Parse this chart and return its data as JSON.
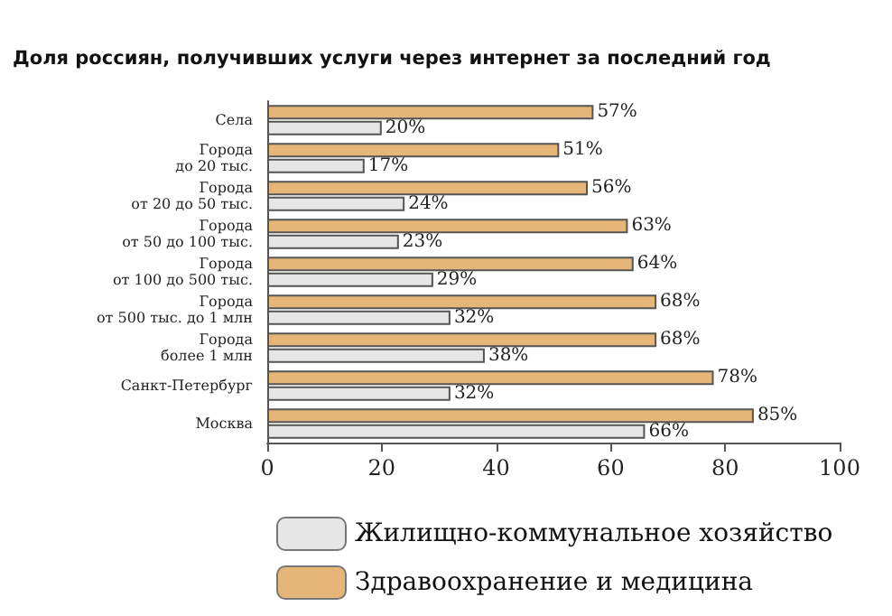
{
  "chart_data": {
    "type": "bar",
    "orientation": "horizontal",
    "title": "Доля россиян, получивших услуги через интернет за последний год",
    "categories": [
      "Села",
      "Города\nдо 20 тыс.",
      "Города\nот 20 до 50 тыс.",
      "Города\nот 50 до 100 тыс.",
      "Города\nот 100 до 500 тыс.",
      "Города\nот 500 тыс. до 1 млн",
      "Города\nболее 1 млн",
      "Санкт-Петербург",
      "Москва"
    ],
    "series": [
      {
        "name": "Жилищно-коммунальное хозяйство",
        "color": "#e6e6e6",
        "values": [
          20,
          17,
          24,
          23,
          29,
          32,
          38,
          32,
          66
        ],
        "value_labels": [
          "20%",
          "17%",
          "24%",
          "23%",
          "29%",
          "32%",
          "38%",
          "32%",
          "66%"
        ]
      },
      {
        "name": "Здравоохранение и медицина",
        "color": "#e6b578",
        "values": [
          57,
          51,
          56,
          63,
          64,
          68,
          68,
          78,
          85
        ],
        "value_labels": [
          "57%",
          "51%",
          "56%",
          "63%",
          "64%",
          "68%",
          "68%",
          "78%",
          "85%"
        ]
      }
    ],
    "xlim": [
      0,
      100
    ],
    "xticks": [
      0,
      20,
      40,
      60,
      80,
      100
    ],
    "grid": false,
    "legend": "bottom left"
  }
}
